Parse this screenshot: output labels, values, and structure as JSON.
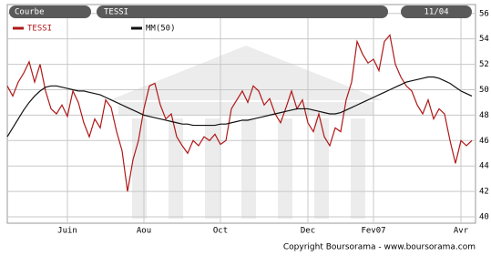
{
  "header": {
    "mode": "Courbe",
    "symbol": "TESSI",
    "date": "11/04"
  },
  "chart_data": {
    "type": "line",
    "categories": [
      null,
      null,
      null,
      null,
      null,
      null,
      null,
      null,
      null,
      null,
      null,
      "Juin",
      null,
      null,
      null,
      null,
      null,
      null,
      null,
      null,
      null,
      null,
      null,
      null,
      null,
      "Aou",
      null,
      null,
      null,
      null,
      null,
      null,
      null,
      null,
      null,
      null,
      null,
      null,
      null,
      "Oct",
      null,
      null,
      null,
      null,
      null,
      null,
      null,
      null,
      null,
      null,
      null,
      null,
      null,
      null,
      null,
      "Dec",
      null,
      null,
      null,
      null,
      null,
      null,
      null,
      null,
      null,
      null,
      null,
      "Fev07",
      null,
      null,
      null,
      null,
      null,
      null,
      null,
      null,
      null,
      null,
      null,
      null,
      null,
      null,
      null,
      "Avr",
      null,
      null
    ],
    "series": [
      {
        "name": "TESSI",
        "color": "#b01818",
        "values": [
          50.3,
          49.5,
          50.6,
          51.3,
          52.2,
          50.6,
          52,
          49.9,
          48.5,
          48.1,
          48.8,
          47.9,
          49.9,
          49,
          47.4,
          46.3,
          47.7,
          47,
          49.2,
          48.6,
          46.7,
          45.2,
          42,
          44.5,
          46,
          48.5,
          50.3,
          50.5,
          48.8,
          47.7,
          48.1,
          46.3,
          45.6,
          45,
          46,
          45.6,
          46.3,
          46,
          46.5,
          45.7,
          46,
          48.5,
          49.2,
          49.9,
          49,
          50.3,
          49.9,
          48.8,
          49.3,
          48.1,
          47.4,
          48.6,
          49.9,
          48.5,
          49.2,
          47.4,
          46.7,
          48.1,
          46.3,
          45.6,
          47,
          46.7,
          49.2,
          50.6,
          53.8,
          52.8,
          52.1,
          52.4,
          51.5,
          53.8,
          54.3,
          52,
          51,
          50.3,
          49.9,
          48.8,
          48.1,
          49.2,
          47.7,
          48.5,
          48.1,
          46,
          44.2,
          46,
          45.6,
          46
        ]
      },
      {
        "name": "MM(50)",
        "color": "#111111",
        "values": [
          46.3,
          47.0,
          47.7,
          48.4,
          49.0,
          49.5,
          49.9,
          50.2,
          50.3,
          50.3,
          50.2,
          50.1,
          50.0,
          49.9,
          49.9,
          49.8,
          49.7,
          49.6,
          49.4,
          49.2,
          49.0,
          48.8,
          48.6,
          48.4,
          48.2,
          48.0,
          47.9,
          47.8,
          47.7,
          47.6,
          47.5,
          47.4,
          47.3,
          47.3,
          47.2,
          47.2,
          47.2,
          47.2,
          47.2,
          47.3,
          47.3,
          47.4,
          47.5,
          47.6,
          47.6,
          47.7,
          47.8,
          47.9,
          48.0,
          48.1,
          48.2,
          48.3,
          48.4,
          48.5,
          48.5,
          48.5,
          48.4,
          48.3,
          48.2,
          48.1,
          48.1,
          48.2,
          48.4,
          48.6,
          48.8,
          49.0,
          49.2,
          49.4,
          49.6,
          49.8,
          50.0,
          50.2,
          50.4,
          50.6,
          50.7,
          50.8,
          50.9,
          51.0,
          51.0,
          50.9,
          50.7,
          50.5,
          50.2,
          49.9,
          49.7,
          49.5
        ]
      }
    ],
    "ylim": [
      39.5,
      56.7
    ],
    "yticks": [
      56,
      54,
      52,
      50,
      48,
      46,
      44,
      42,
      40
    ],
    "grid": true
  },
  "copyright": "Copyright Boursorama - www.boursorama.com"
}
